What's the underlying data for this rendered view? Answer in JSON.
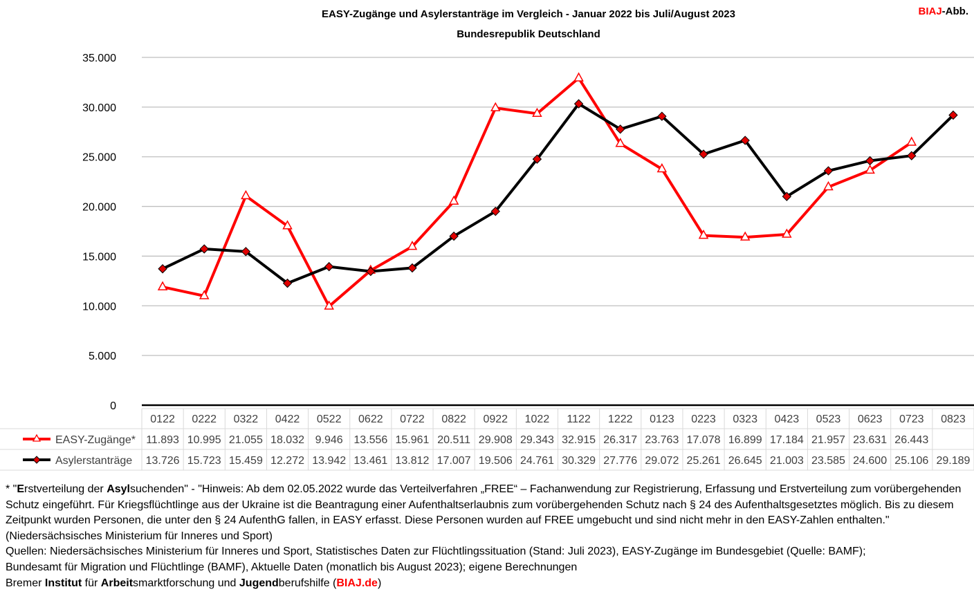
{
  "header": {
    "title_line1": "EASY-Zugänge und Asylerstanträge im Vergleich - Januar 2022 bis Juli/August 2023",
    "title_line2": "Bundesrepublik Deutschland",
    "badge_red": "BIAJ",
    "badge_black": "-Abb."
  },
  "colors": {
    "easy": "#ff0000",
    "asyl": "#000000",
    "grid": "#bfbfbf",
    "accent": "#ff0000"
  },
  "chart_data": {
    "type": "line",
    "categories": [
      "0122",
      "0222",
      "0322",
      "0422",
      "0522",
      "0622",
      "0722",
      "0822",
      "0922",
      "1022",
      "1122",
      "1222",
      "0123",
      "0223",
      "0323",
      "0423",
      "0523",
      "0623",
      "0723",
      "0823"
    ],
    "series": [
      {
        "name": "EASY-Zugänge*",
        "values": [
          11893,
          10995,
          21055,
          18032,
          9946,
          13556,
          15961,
          20511,
          29908,
          29343,
          32915,
          26317,
          23763,
          17078,
          16899,
          17184,
          21957,
          23631,
          26443,
          null
        ],
        "labels": [
          "11.893",
          "10.995",
          "21.055",
          "18.032",
          "9.946",
          "13.556",
          "15.961",
          "20.511",
          "29.908",
          "29.343",
          "32.915",
          "26.317",
          "23.763",
          "17.078",
          "16.899",
          "17.184",
          "21.957",
          "23.631",
          "26.443",
          ""
        ]
      },
      {
        "name": "Asylerstanträge",
        "values": [
          13726,
          15723,
          15459,
          12272,
          13942,
          13461,
          13812,
          17007,
          19506,
          24761,
          30329,
          27776,
          29072,
          25261,
          26645,
          21003,
          23585,
          24600,
          25106,
          29189
        ],
        "labels": [
          "13.726",
          "15.723",
          "15.459",
          "12.272",
          "13.942",
          "13.461",
          "13.812",
          "17.007",
          "19.506",
          "24.761",
          "30.329",
          "27.776",
          "29.072",
          "25.261",
          "26.645",
          "21.003",
          "23.585",
          "24.600",
          "25.106",
          "29.189"
        ]
      }
    ],
    "ylim": [
      0,
      35000
    ],
    "yticks": [
      0,
      5000,
      10000,
      15000,
      20000,
      25000,
      30000,
      35000
    ],
    "ytick_labels": [
      "0",
      "5.000",
      "10.000",
      "15.000",
      "20.000",
      "25.000",
      "30.000",
      "35.000"
    ],
    "grid": true,
    "legend": "data-table"
  },
  "notes": {
    "n1_a": "* \"",
    "n1_b1": "E",
    "n1_c": "rstverteilung der ",
    "n1_b2": "Asyl",
    "n1_d": "suchenden\" - \"Hinweis: Ab dem 02.05.2022 wurde das Verteilverfahren „FREE“ – Fachanwendung zur Registrierung, Erfassung und Erstverteilung zum vorübergehenden Schutz eingeführt. Für Kriegsflüchtlinge aus der Ukraine ist die Beantragung einer Aufenthaltserlaubnis zum vorübergehenden Schutz nach § 24 des Aufenthaltsgesetztes möglich. Bis zu diesem Zeitpunkt wurden Personen, die unter den § 24 AufenthG fallen, in EASY erfasst. Diese Personen wurden auf FREE umgebucht und sind nicht mehr in den EASY-Zahlen enthalten.\" (Niedersächsisches Ministerium für Inneres und Sport)",
    "sources_line1": "Quellen: Niedersächsisches Ministerium für Inneres und Sport, Statistisches Daten zur Flüchtlingssituation (Stand: Juli 2023), EASY-Zugänge im Bundesgebiet (Quelle: BAMF);",
    "sources_line2": "Bundesamt für Migration und Flüchtlinge (BAMF), Aktuelle Daten (monatlich bis August 2023); eigene Berechnungen",
    "inst_1": "Bremer ",
    "inst_b1": "Institut",
    "inst_2": " für ",
    "inst_b2": "Arbeit",
    "inst_3": "smarktforschung und ",
    "inst_b3": "Jugend",
    "inst_4": "berufshilfe (",
    "inst_link": "BIAJ.de",
    "inst_5": ")"
  }
}
